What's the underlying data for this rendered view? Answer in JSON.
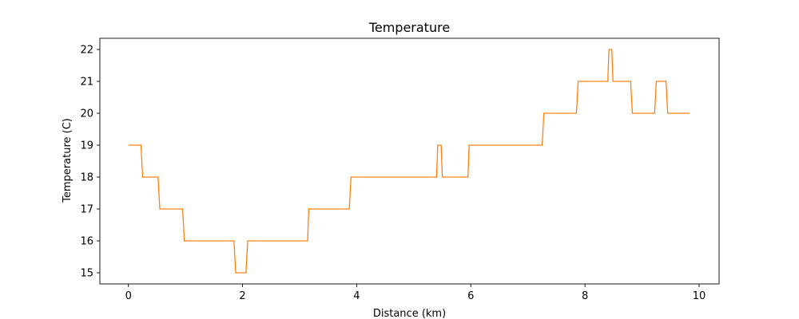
{
  "chart_data": {
    "type": "line",
    "title": "Temperature",
    "xlabel": "Distance (km)",
    "ylabel": "Temperature (C)",
    "xlim": [
      -0.5,
      10.35
    ],
    "ylim": [
      14.65,
      22.35
    ],
    "xticks": [
      0,
      2,
      4,
      6,
      8,
      10
    ],
    "yticks": [
      15,
      16,
      17,
      18,
      19,
      20,
      21,
      22
    ],
    "grid": false,
    "legend": "none",
    "series": [
      {
        "color": "#ff7f0e",
        "step": true,
        "points": [
          [
            0.0,
            19
          ],
          [
            0.22,
            19
          ],
          [
            0.25,
            18
          ],
          [
            0.52,
            18
          ],
          [
            0.55,
            17
          ],
          [
            0.95,
            17
          ],
          [
            0.98,
            16
          ],
          [
            1.85,
            16
          ],
          [
            1.88,
            15
          ],
          [
            2.06,
            15
          ],
          [
            2.09,
            16
          ],
          [
            3.14,
            16
          ],
          [
            3.16,
            17
          ],
          [
            3.87,
            17
          ],
          [
            3.9,
            18
          ],
          [
            5.4,
            18
          ],
          [
            5.42,
            19
          ],
          [
            5.48,
            19
          ],
          [
            5.5,
            18
          ],
          [
            5.95,
            18
          ],
          [
            5.97,
            19
          ],
          [
            7.25,
            19
          ],
          [
            7.28,
            20
          ],
          [
            7.85,
            20
          ],
          [
            7.88,
            21
          ],
          [
            8.4,
            21
          ],
          [
            8.42,
            22
          ],
          [
            8.47,
            22
          ],
          [
            8.49,
            21
          ],
          [
            8.8,
            21
          ],
          [
            8.83,
            20
          ],
          [
            9.22,
            20
          ],
          [
            9.25,
            21
          ],
          [
            9.42,
            21
          ],
          [
            9.45,
            20
          ],
          [
            9.83,
            20
          ]
        ]
      }
    ]
  }
}
